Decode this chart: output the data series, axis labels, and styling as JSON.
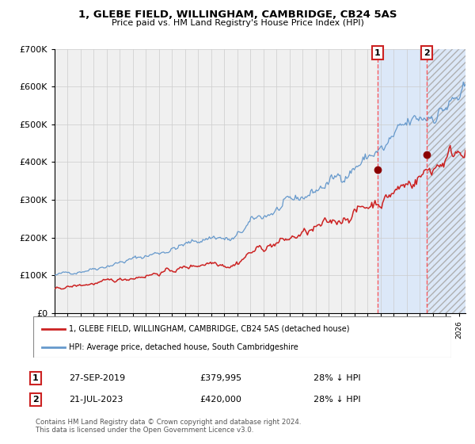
{
  "title": "1, GLEBE FIELD, WILLINGHAM, CAMBRIDGE, CB24 5AS",
  "subtitle": "Price paid vs. HM Land Registry's House Price Index (HPI)",
  "legend_line1": "1, GLEBE FIELD, WILLINGHAM, CAMBRIDGE, CB24 5AS (detached house)",
  "legend_line2": "HPI: Average price, detached house, South Cambridgeshire",
  "footer": "Contains HM Land Registry data © Crown copyright and database right 2024.\nThis data is licensed under the Open Government Licence v3.0.",
  "transaction1_date": "27-SEP-2019",
  "transaction1_price": 379995,
  "transaction1_hpi_diff": "28% ↓ HPI",
  "transaction2_date": "21-JUL-2023",
  "transaction2_price": 420000,
  "transaction2_hpi_diff": "28% ↓ HPI",
  "hpi_color": "#6699cc",
  "price_color": "#cc2222",
  "plot_bg_color": "#f0f0f0",
  "grid_color": "#cccccc",
  "shade_color": "#dce8f8",
  "vline_color": "#ff4444",
  "transaction1_year": 2019.75,
  "transaction2_year": 2023.55,
  "ylim": [
    0,
    700000
  ],
  "xlim_start": 1995.0,
  "xlim_end": 2026.5
}
